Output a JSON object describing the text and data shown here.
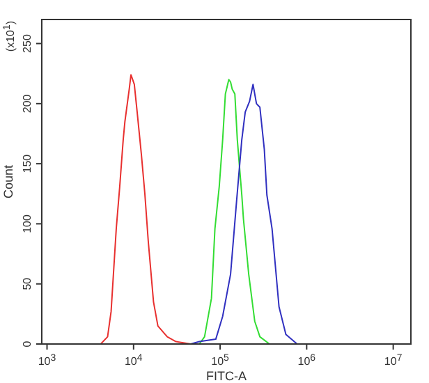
{
  "chart_data": {
    "type": "line",
    "xlabel": "FITC-A",
    "ylabel": "Count",
    "annotations": [
      "(x10$^{1}$)"
    ],
    "log": "x",
    "xlim": [
      870,
      16000000
    ],
    "ylim": [
      0,
      270
    ],
    "xticks": [
      {
        "value": 1000,
        "label": "10$^{3}$"
      },
      {
        "value": 10000,
        "label": "10$^{4}$"
      },
      {
        "value": 100000,
        "label": "10$^{5}$"
      },
      {
        "value": 1000000,
        "label": "10$^{6}$"
      },
      {
        "value": 10000000,
        "label": "10$^{7}$"
      }
    ],
    "yticks": [
      0,
      50,
      100,
      150,
      200,
      250
    ],
    "legend": false,
    "marker": "none",
    "line_style": "solid",
    "series": [
      {
        "color": "#e8302f",
        "x": [
          4170,
          5010,
          5500,
          6310,
          6920,
          7590,
          7940,
          8910,
          9330,
          10200,
          11000,
          12300,
          13500,
          14800,
          17000,
          19100,
          24500,
          30900,
          45700
        ],
        "values": [
          0,
          6,
          27,
          96,
          131,
          170,
          185,
          212,
          224,
          216,
          193,
          158,
          125,
          85,
          35,
          15,
          6,
          2,
          0
        ]
      },
      {
        "color": "#33dd33",
        "x": [
          57500,
          66100,
          79400,
          87100,
          97700,
          107000,
          115000,
          126000,
          132000,
          138000,
          148000,
          158000,
          178000,
          186000,
          214000,
          251000,
          288000,
          372000
        ],
        "values": [
          0,
          6,
          38,
          96,
          131,
          170,
          208,
          220,
          218,
          212,
          208,
          170,
          124,
          104,
          58,
          19,
          6,
          0
        ]
      },
      {
        "color": "#3030c0",
        "x": [
          45700,
          57500,
          89100,
          107000,
          132000,
          155000,
          178000,
          195000,
          219000,
          240000,
          263000,
          288000,
          324000,
          347000,
          398000,
          479000,
          575000,
          776000
        ],
        "values": [
          0,
          2,
          4,
          23,
          58,
          119,
          170,
          193,
          202,
          216,
          200,
          197,
          162,
          124,
          96,
          31,
          8,
          0
        ]
      }
    ]
  }
}
